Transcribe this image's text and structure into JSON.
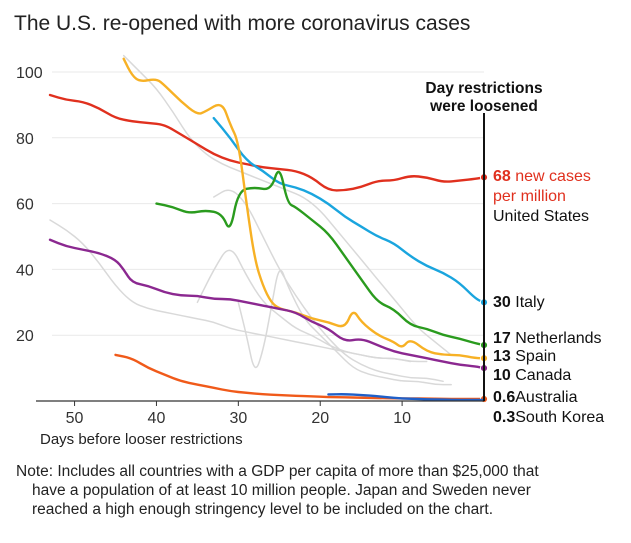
{
  "chart_data": {
    "type": "line",
    "title": "The U.S. re-opened with more coronavirus cases",
    "xlabel": "Days before looser restrictions",
    "ylabel": "",
    "xlim": [
      53,
      0
    ],
    "ylim": [
      0,
      100
    ],
    "x_ticks": [
      "50",
      "40",
      "30",
      "20",
      "10"
    ],
    "y_ticks": [
      "100",
      "80",
      "60",
      "40",
      "20"
    ],
    "annotation": [
      "Day restrictions",
      "were loosened"
    ],
    "colors": {
      "United States": "#e0301e",
      "Italy": "#1aa5de",
      "Netherlands": "#2a9b1e",
      "Spain": "#f7b125",
      "Canada": "#8b2890",
      "Australia": "#f05a1a",
      "South Korea": "#1f5fc8",
      "other": "#d9d9d9"
    },
    "series": [
      {
        "name": "United States",
        "color": "#e0301e",
        "x": [
          53,
          51,
          49,
          47,
          45,
          43,
          41,
          39,
          37,
          35,
          33,
          31,
          29,
          27,
          25,
          23,
          21,
          19,
          17,
          15,
          13,
          11,
          9,
          7,
          5,
          3,
          1,
          0
        ],
        "values": [
          93,
          91.5,
          91,
          89,
          86,
          85,
          84.5,
          84,
          81,
          78,
          75,
          73,
          72,
          71,
          70.5,
          70,
          68,
          64,
          64,
          65,
          67,
          67,
          68.5,
          68,
          66.5,
          67,
          67.5,
          68
        ]
      },
      {
        "name": "Italy",
        "color": "#1aa5de",
        "x": [
          33,
          31,
          29,
          27,
          25,
          23,
          21,
          19,
          17,
          15,
          13,
          11,
          9,
          7,
          5,
          3,
          1,
          0
        ],
        "values": [
          86,
          80,
          73,
          70,
          66,
          65,
          63,
          60,
          56,
          53,
          50,
          48,
          44,
          41,
          39,
          36,
          31,
          30
        ]
      },
      {
        "name": "Netherlands",
        "color": "#2a9b1e",
        "x": [
          40,
          38,
          36,
          34,
          32,
          31,
          30,
          28,
          26,
          25,
          24,
          23,
          21,
          19,
          17,
          15,
          13,
          11,
          9,
          7,
          5,
          3,
          1,
          0
        ],
        "values": [
          60,
          59,
          57,
          58,
          57,
          51,
          64,
          65,
          64,
          72,
          60,
          59,
          55,
          51,
          44,
          37,
          30,
          28,
          23,
          22,
          20,
          19,
          17.5,
          17
        ]
      },
      {
        "name": "Spain",
        "color": "#f7b125",
        "x": [
          44,
          43,
          42,
          40,
          39,
          37,
          35,
          34,
          32,
          31,
          30,
          29,
          28,
          27,
          26,
          25,
          23,
          21,
          19,
          17,
          16,
          15,
          13,
          11,
          10,
          9,
          7,
          5,
          3,
          1,
          0
        ],
        "values": [
          104,
          99,
          97,
          98,
          96,
          91,
          87,
          88,
          91,
          84,
          79,
          60,
          43,
          35,
          30,
          28,
          27,
          25,
          24,
          22,
          28,
          24,
          20,
          18,
          16,
          19,
          15,
          14,
          14,
          13,
          13
        ]
      },
      {
        "name": "Canada",
        "color": "#8b2890",
        "x": [
          53,
          51,
          49,
          47,
          45,
          44,
          43,
          41,
          39,
          37,
          35,
          33,
          31,
          29,
          27,
          25,
          23,
          21,
          19,
          17,
          15,
          13,
          11,
          9,
          7,
          5,
          3,
          1,
          0
        ],
        "values": [
          49,
          47,
          46,
          45,
          43,
          40,
          36,
          35,
          33,
          32,
          32,
          31,
          31,
          30,
          29,
          28,
          27,
          24,
          22,
          18,
          19,
          17,
          15,
          14,
          13,
          12,
          11,
          10.5,
          10
        ]
      },
      {
        "name": "Australia",
        "color": "#f05a1a",
        "x": [
          45,
          43,
          41,
          39,
          37,
          35,
          33,
          31,
          29,
          27,
          25,
          23,
          21,
          19,
          17,
          15,
          13,
          11,
          9,
          7,
          5,
          3,
          1,
          0
        ],
        "values": [
          14,
          13,
          10,
          8,
          6,
          5,
          4,
          3,
          2.5,
          2,
          1.8,
          1.6,
          1.4,
          1.2,
          1.1,
          1,
          0.9,
          0.8,
          0.8,
          0.7,
          0.7,
          0.6,
          0.6,
          0.6
        ]
      },
      {
        "name": "South Korea",
        "color": "#1f5fc8",
        "x": [
          19,
          17,
          15,
          13,
          11,
          9,
          7,
          5,
          3,
          1,
          0
        ],
        "values": [
          2,
          2.1,
          1.8,
          1.5,
          0.9,
          0.7,
          0.5,
          0.4,
          0.3,
          0.3,
          0.3
        ]
      }
    ],
    "other_series": [
      {
        "x": [
          44,
          42,
          40,
          38,
          36,
          34,
          32,
          30,
          28,
          26,
          24,
          22,
          20,
          18,
          16,
          14,
          12,
          10,
          8,
          6,
          4
        ],
        "values": [
          105,
          100,
          95,
          88,
          80,
          75,
          72,
          70,
          68,
          66,
          64,
          62,
          58,
          52,
          46,
          40,
          34,
          28,
          22,
          18,
          14
        ]
      },
      {
        "x": [
          53,
          51,
          49,
          47,
          45,
          43,
          41,
          39,
          37,
          35,
          33,
          31,
          29,
          27,
          25,
          23,
          21,
          19,
          17,
          15,
          13,
          11,
          9,
          7
        ],
        "values": [
          55,
          52,
          48,
          42,
          35,
          30,
          28,
          27,
          26,
          25,
          24,
          22,
          21,
          20,
          19,
          18,
          17,
          16,
          15,
          14,
          13,
          13,
          12,
          12
        ]
      },
      {
        "x": [
          35,
          33,
          31,
          29,
          27,
          25,
          23,
          21,
          19,
          17,
          15,
          13,
          11,
          9
        ],
        "values": [
          30,
          40,
          48,
          38,
          30,
          26,
          22,
          20,
          17,
          15,
          14,
          13,
          13,
          12
        ]
      },
      {
        "x": [
          33,
          31,
          29,
          27,
          25,
          23,
          21,
          19,
          17,
          15,
          13,
          11,
          9,
          7,
          5
        ],
        "values": [
          62,
          65,
          60,
          50,
          40,
          32,
          25,
          19,
          14,
          11,
          9,
          8,
          7,
          7,
          6
        ]
      },
      {
        "x": [
          30,
          29,
          28,
          27,
          26,
          25,
          24,
          22,
          20,
          18,
          16,
          14,
          12,
          10,
          8,
          6,
          4
        ],
        "values": [
          30,
          20,
          8,
          15,
          28,
          42,
          35,
          25,
          20,
          15,
          10,
          8,
          7,
          6,
          6,
          5,
          5
        ]
      }
    ],
    "end_labels": [
      {
        "value": "68",
        "text": [
          "new cases",
          "per million"
        ],
        "country": "United States"
      },
      {
        "value": "30",
        "country": "Italy"
      },
      {
        "value": "17",
        "country": "Netherlands"
      },
      {
        "value": "13",
        "country": "Spain"
      },
      {
        "value": "10",
        "country": "Canada"
      },
      {
        "value": "0.6",
        "country": "Australia"
      },
      {
        "value": "0.3",
        "country": "South Korea"
      }
    ],
    "note": [
      "Note: Includes all countries with a GDP per capita of more than $25,000 that",
      "have a population of at least 10 million people. Japan and Sweden never",
      "reached a high enough stringency level to be included on the chart."
    ]
  }
}
